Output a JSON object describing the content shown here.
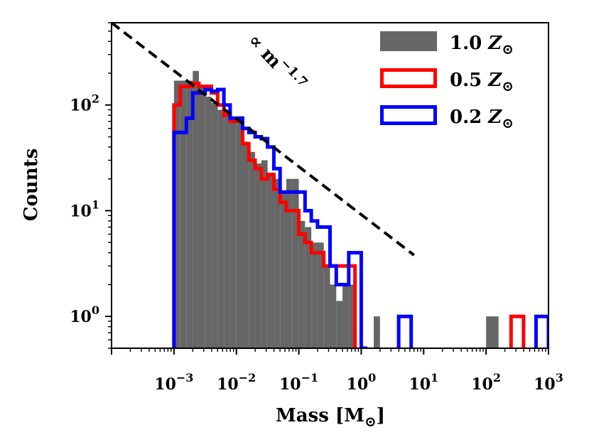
{
  "chart_data": {
    "type": "histogram",
    "xscale": "log",
    "yscale": "log",
    "xlabel": "Mass [M⊙]",
    "ylabel": "Counts",
    "xlim": [
      0.0001,
      1000
    ],
    "ylim": [
      0.5,
      600
    ],
    "x_ticks": [
      {
        "value": 0.001,
        "base": "10",
        "exp": "−3"
      },
      {
        "value": 0.01,
        "base": "10",
        "exp": "−2"
      },
      {
        "value": 0.1,
        "base": "10",
        "exp": "−1"
      },
      {
        "value": 1,
        "base": "10",
        "exp": "0"
      },
      {
        "value": 10,
        "base": "10",
        "exp": "1"
      },
      {
        "value": 100,
        "base": "10",
        "exp": "2"
      },
      {
        "value": 1000,
        "base": "10",
        "exp": "3"
      }
    ],
    "y_ticks": [
      {
        "value": 1,
        "base": "10",
        "exp": "0"
      },
      {
        "value": 10,
        "base": "10",
        "exp": "1"
      },
      {
        "value": 100,
        "base": "10",
        "exp": "2"
      }
    ],
    "bin_width_dex": 0.1,
    "series": [
      {
        "name": "1.0 Z⊙",
        "style": "filled",
        "color": "#666666",
        "bins": [
          {
            "x": [
              0.001,
              0.00126
            ],
            "count": 170
          },
          {
            "x": [
              0.00126,
              0.00158
            ],
            "count": 170
          },
          {
            "x": [
              0.00158,
              0.002
            ],
            "count": 170
          },
          {
            "x": [
              0.002,
              0.00251
            ],
            "count": 210
          },
          {
            "x": [
              0.00251,
              0.00316
            ],
            "count": 150
          },
          {
            "x": [
              0.00316,
              0.00398
            ],
            "count": 120
          },
          {
            "x": [
              0.00398,
              0.00501
            ],
            "count": 105
          },
          {
            "x": [
              0.00501,
              0.00631
            ],
            "count": 90
          },
          {
            "x": [
              0.00631,
              0.00794
            ],
            "count": 90
          },
          {
            "x": [
              0.00794,
              0.01
            ],
            "count": 70
          },
          {
            "x": [
              0.01,
              0.01259
            ],
            "count": 78
          },
          {
            "x": [
              0.01259,
              0.01585
            ],
            "count": 45
          },
          {
            "x": [
              0.01585,
              0.01995
            ],
            "count": 36
          },
          {
            "x": [
              0.01995,
              0.02512
            ],
            "count": 28
          },
          {
            "x": [
              0.02512,
              0.03162
            ],
            "count": 30
          },
          {
            "x": [
              0.03162,
              0.03981
            ],
            "count": 22
          },
          {
            "x": [
              0.03981,
              0.05012
            ],
            "count": 20
          },
          {
            "x": [
              0.05012,
              0.0631
            ],
            "count": 15
          },
          {
            "x": [
              0.0631,
              0.07943
            ],
            "count": 20
          },
          {
            "x": [
              0.07943,
              0.1
            ],
            "count": 20
          },
          {
            "x": [
              0.1,
              0.12589
            ],
            "count": 8
          },
          {
            "x": [
              0.12589,
              0.15849
            ],
            "count": 7
          },
          {
            "x": [
              0.15849,
              0.19953
            ],
            "count": 5
          },
          {
            "x": [
              0.19953,
              0.25119
            ],
            "count": 5
          },
          {
            "x": [
              0.25119,
              0.31623
            ],
            "count": 3
          },
          {
            "x": [
              0.31623,
              0.39811
            ],
            "count": 2
          },
          {
            "x": [
              0.39811,
              0.50119
            ],
            "count": 1.4
          },
          {
            "x": [
              0.50119,
              0.63096
            ],
            "count": 2
          },
          {
            "x": [
              0.63096,
              0.79433
            ],
            "count": 2
          },
          {
            "x": [
              0.79433,
              1.0
            ],
            "count": 0
          },
          {
            "x": [
              1.0,
              1.25893
            ],
            "count": 0
          },
          {
            "x": [
              1.25893,
              1.58489
            ],
            "count": 0
          },
          {
            "x": [
              1.58489,
              1.99526
            ],
            "count": 1
          },
          {
            "x": [
              100,
              158.489
            ],
            "count": 1
          }
        ]
      },
      {
        "name": "0.5 Z⊙",
        "style": "step",
        "color": "#ff0000",
        "edges": [
          0.001,
          0.00126,
          0.00158,
          0.002,
          0.00251,
          0.00316,
          0.00398,
          0.00501,
          0.00631,
          0.00794,
          0.01,
          0.01259,
          0.01585,
          0.01995,
          0.02512,
          0.03162,
          0.03981,
          0.05012,
          0.0631,
          0.07943,
          0.1,
          0.12589,
          0.15849,
          0.19953,
          0.25119,
          0.31623,
          0.39811,
          0.50119,
          0.63096,
          0.79433
        ],
        "counts": [
          100,
          150,
          150,
          160,
          150,
          150,
          130,
          100,
          80,
          70,
          75,
          43,
          30,
          25,
          20,
          22,
          16,
          12,
          10,
          10,
          6,
          5,
          4,
          4,
          3,
          3,
          3,
          3,
          3
        ],
        "extra_bins": [
          {
            "x": [
              251.19,
              398.11
            ],
            "count": 1
          }
        ]
      },
      {
        "name": "0.2 Z⊙",
        "style": "step",
        "color": "#0000ff",
        "edges": [
          0.001,
          0.00158,
          0.002,
          0.00251,
          0.00316,
          0.00398,
          0.00501,
          0.00631,
          0.00794,
          0.01,
          0.01259,
          0.01585,
          0.01995,
          0.02512,
          0.03162,
          0.03981,
          0.05012,
          0.0631,
          0.07943,
          0.1,
          0.12589,
          0.15849,
          0.19953,
          0.25119,
          0.31623,
          0.39811,
          0.50119,
          0.63096,
          0.79433,
          1.0,
          1.25893
        ],
        "counts": [
          55,
          75,
          130,
          130,
          140,
          135,
          140,
          100,
          75,
          75,
          60,
          55,
          50,
          48,
          40,
          25,
          15,
          15,
          15,
          15,
          10,
          8,
          7,
          7,
          3,
          2,
          2,
          4,
          4,
          0
        ],
        "extra_bins": [
          {
            "x": [
              3.98,
              6.31
            ],
            "count": 1
          },
          {
            "x": [
              631.0,
              1000
            ],
            "count": 1
          }
        ]
      }
    ],
    "reference_line": {
      "label_prefix": "∝ m",
      "exponent": "−1.7",
      "x": [
        0.0001,
        7
      ],
      "y": [
        600,
        3.8
      ]
    },
    "legend": {
      "position": "top-right",
      "entries": [
        {
          "label": "1.0",
          "suffix": "Z⊙",
          "swatch": "filled",
          "color": "#666666"
        },
        {
          "label": "0.5",
          "suffix": "Z⊙",
          "swatch": "outline",
          "color": "#ff0000"
        },
        {
          "label": "0.2",
          "suffix": "Z⊙",
          "swatch": "outline",
          "color": "#0000ff"
        }
      ]
    }
  }
}
